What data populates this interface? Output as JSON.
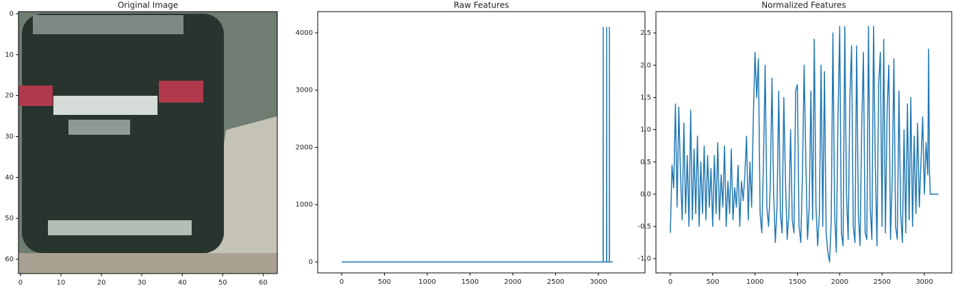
{
  "chart_data": [
    {
      "type": "image",
      "title": "Original Image",
      "xlim": [
        -0.5,
        63.5
      ],
      "ylim": [
        63.5,
        -0.5
      ],
      "xticks": [
        0,
        10,
        20,
        30,
        40,
        50,
        60
      ],
      "yticks": [
        0,
        10,
        20,
        30,
        40,
        50,
        60
      ]
    },
    {
      "type": "line",
      "title": "Raw Features",
      "color": "#1f77b4",
      "x": [
        0,
        3055,
        3056,
        3057,
        3095,
        3096,
        3097,
        3127,
        3128,
        3129,
        3167
      ],
      "values": [
        0,
        0,
        4096,
        0,
        0,
        4096,
        0,
        0,
        4096,
        0,
        0
      ],
      "xlim": [
        -280,
        3544
      ],
      "ylim": [
        -191,
        4370
      ],
      "xticks": [
        0,
        500,
        1000,
        1500,
        2000,
        2500,
        3000
      ],
      "yticks": [
        0,
        1000,
        2000,
        3000,
        4000
      ]
    },
    {
      "type": "line",
      "title": "Normalized Features",
      "color": "#1f77b4",
      "x": [
        0,
        20,
        40,
        60,
        80,
        100,
        120,
        140,
        160,
        180,
        200,
        220,
        240,
        260,
        280,
        300,
        320,
        340,
        360,
        380,
        400,
        420,
        440,
        460,
        480,
        500,
        520,
        540,
        560,
        580,
        600,
        620,
        640,
        660,
        680,
        700,
        720,
        740,
        760,
        780,
        800,
        820,
        840,
        860,
        880,
        900,
        920,
        940,
        960,
        980,
        1000,
        1020,
        1040,
        1060,
        1080,
        1100,
        1120,
        1140,
        1160,
        1180,
        1200,
        1220,
        1240,
        1260,
        1280,
        1300,
        1320,
        1340,
        1360,
        1380,
        1400,
        1420,
        1440,
        1460,
        1480,
        1500,
        1520,
        1540,
        1560,
        1580,
        1600,
        1620,
        1640,
        1660,
        1680,
        1700,
        1720,
        1740,
        1760,
        1780,
        1800,
        1820,
        1840,
        1860,
        1880,
        1900,
        1920,
        1940,
        1960,
        1980,
        2000,
        2020,
        2040,
        2060,
        2080,
        2100,
        2120,
        2140,
        2160,
        2180,
        2200,
        2220,
        2240,
        2260,
        2280,
        2300,
        2320,
        2340,
        2360,
        2380,
        2400,
        2420,
        2440,
        2460,
        2480,
        2500,
        2520,
        2540,
        2560,
        2580,
        2600,
        2620,
        2640,
        2660,
        2680,
        2700,
        2720,
        2740,
        2760,
        2780,
        2800,
        2820,
        2840,
        2860,
        2880,
        2900,
        2920,
        2940,
        2960,
        2980,
        3000,
        3020,
        3040,
        3050,
        3060,
        3070,
        3167
      ],
      "values": [
        -0.6,
        0.45,
        0.1,
        1.4,
        -0.2,
        1.35,
        0.3,
        -0.4,
        1.1,
        -0.3,
        0.6,
        -0.5,
        1.3,
        -0.4,
        0.7,
        -0.3,
        0.9,
        -0.5,
        0.5,
        -0.3,
        0.75,
        -0.4,
        0.6,
        -0.2,
        0.4,
        -0.5,
        0.6,
        -0.3,
        0.8,
        -0.4,
        0.3,
        -0.2,
        0.75,
        -0.5,
        0.2,
        -0.3,
        0.7,
        -0.4,
        0.1,
        -0.2,
        0.45,
        -0.5,
        0.2,
        -0.1,
        0.3,
        0.9,
        -0.4,
        0.5,
        -0.2,
        1.2,
        2.2,
        1.5,
        2.1,
        -0.3,
        -0.6,
        0.5,
        2.0,
        -0.2,
        -0.5,
        0.1,
        1.8,
        0.0,
        -0.75,
        -0.2,
        1.6,
        -0.3,
        -0.6,
        1.5,
        0.2,
        -0.7,
        -0.3,
        1.0,
        -0.4,
        -0.6,
        1.6,
        1.7,
        -0.5,
        -0.75,
        0.3,
        2.0,
        0.5,
        -0.7,
        -0.2,
        1.6,
        -0.4,
        2.4,
        -0.2,
        -0.8,
        -0.3,
        2.0,
        -0.5,
        1.9,
        -0.6,
        -0.9,
        -1.05,
        -0.4,
        2.5,
        -0.3,
        -0.9,
        1.2,
        2.6,
        -0.6,
        -0.8,
        2.6,
        0.0,
        -0.7,
        1.5,
        2.3,
        -0.5,
        -0.75,
        2.3,
        -0.3,
        -0.8,
        1.0,
        2.2,
        -0.6,
        -0.7,
        2.6,
        -0.2,
        -0.7,
        2.6,
        0.5,
        -0.8,
        1.7,
        2.2,
        -0.5,
        2.4,
        -0.6,
        1.3,
        2.0,
        -0.7,
        0.2,
        2.1,
        -0.5,
        -0.7,
        1.6,
        -0.3,
        -0.75,
        1.0,
        -0.6,
        1.4,
        -0.4,
        1.5,
        -0.5,
        0.9,
        -0.3,
        1.1,
        -0.2,
        0.5,
        1.2,
        0.0,
        0.8,
        0.3,
        2.25,
        0.35,
        0.0,
        0.0
      ],
      "xlim": [
        -170,
        3323
      ],
      "ylim": [
        -1.22,
        2.83
      ],
      "xticks": [
        0,
        500,
        1000,
        1500,
        2000,
        2500,
        3000
      ],
      "yticks": [
        {
          "value": -1.0,
          "label": "-1.0"
        },
        -0.5,
        {
          "value": 0.0,
          "label": "0.0"
        },
        0.5,
        {
          "value": 1.0,
          "label": "1.0"
        },
        1.5,
        {
          "value": 2.0,
          "label": "2.0"
        },
        2.5
      ]
    }
  ]
}
